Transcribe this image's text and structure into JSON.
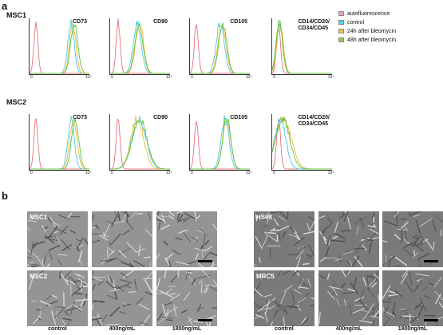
{
  "panel_a": {
    "letter": "a",
    "rows": [
      {
        "label": "MSC1",
        "markers": [
          "CD73",
          "CD90",
          "CD105",
          "CD14/CD20/\nCD34/CD45"
        ]
      },
      {
        "label": "MSC2",
        "markers": [
          "CD73",
          "CD90",
          "CD105",
          "CD14/CD20/\nCD34/CD45"
        ]
      }
    ],
    "ticks": {
      "zero": "0",
      "ten": "10³"
    },
    "legend": [
      {
        "label": "autofluorescence",
        "color": "#f2a0b2"
      },
      {
        "label": "control",
        "color": "#4fd0e8"
      },
      {
        "label": "24h after bleomycin",
        "color": "#f3c44a"
      },
      {
        "label": "48h after bleomycin",
        "color": "#8ecf4f"
      }
    ],
    "curve_colors": {
      "auto": "#e8707a",
      "control": "#49c8e8",
      "h24": "#f0b83a",
      "h48": "#5cbf3a"
    }
  },
  "panel_b": {
    "letter": "b",
    "left_rows": [
      "MSC1",
      "MSC2"
    ],
    "right_rows": [
      "HS68",
      "MRC5"
    ],
    "columns": [
      "control",
      "400ng/mL",
      "1800ng/mL"
    ]
  }
}
